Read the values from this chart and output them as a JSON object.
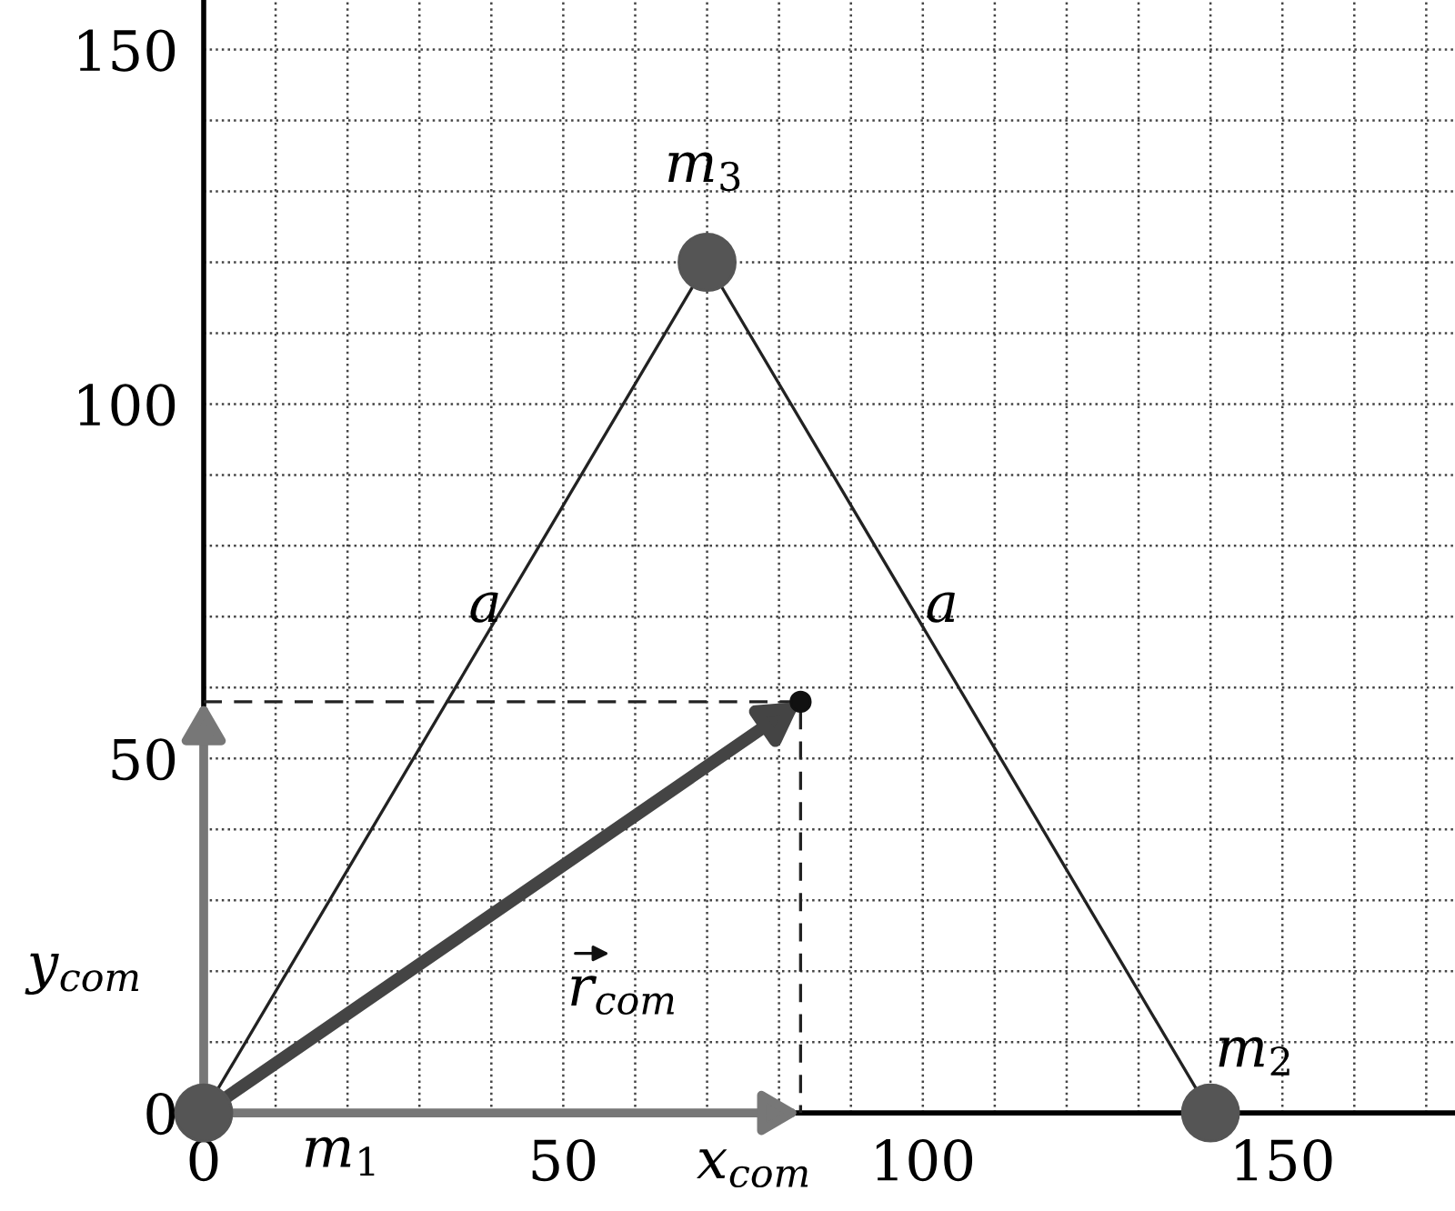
{
  "chart_data": {
    "type": "scatter",
    "x": [
      0,
      140,
      70
    ],
    "values": [
      0,
      0,
      120
    ],
    "color": "#555555",
    "series": [
      {
        "type": "line",
        "x": [
          0,
          70,
          140
        ],
        "values": [
          0,
          120,
          0
        ],
        "color": "#222222",
        "marker": "none",
        "line_style": "solid"
      },
      {
        "type": "line",
        "x": [
          0,
          83,
          83
        ],
        "values": [
          58,
          58,
          0
        ],
        "color": "#222222",
        "marker": "none",
        "line_style": "dashed"
      },
      {
        "type": "scatter",
        "x": [
          83
        ],
        "values": [
          58
        ],
        "color": "#111111",
        "marker": "circle"
      }
    ],
    "annotations": [
      "m$_{1}$",
      "m$_{2}$",
      "m$_{3}$",
      "a",
      "a",
      "r$_{com}$",
      "x$_{com}$",
      "y$_{com}$"
    ],
    "xlim": [
      0,
      174
    ],
    "ylim": [
      0,
      157
    ],
    "xticks": [
      {
        "value": 0,
        "label": "0"
      },
      {
        "value": 10,
        "label": null
      },
      {
        "value": 20,
        "label": null
      },
      {
        "value": 30,
        "label": null
      },
      {
        "value": 40,
        "label": null
      },
      {
        "value": 50,
        "label": "50"
      },
      {
        "value": 60,
        "label": null
      },
      {
        "value": 70,
        "label": null
      },
      {
        "value": 80,
        "label": null
      },
      {
        "value": 90,
        "label": null
      },
      {
        "value": 100,
        "label": "100"
      },
      {
        "value": 110,
        "label": null
      },
      {
        "value": 120,
        "label": null
      },
      {
        "value": 130,
        "label": null
      },
      {
        "value": 140,
        "label": null
      },
      {
        "value": 150,
        "label": "150"
      },
      {
        "value": 160,
        "label": null
      },
      {
        "value": 170,
        "label": null
      }
    ],
    "yticks": [
      {
        "value": 0,
        "label": "0"
      },
      {
        "value": 10,
        "label": null
      },
      {
        "value": 20,
        "label": null
      },
      {
        "value": 30,
        "label": null
      },
      {
        "value": 40,
        "label": null
      },
      {
        "value": 50,
        "label": "50"
      },
      {
        "value": 60,
        "label": null
      },
      {
        "value": 70,
        "label": null
      },
      {
        "value": 80,
        "label": null
      },
      {
        "value": 90,
        "label": null
      },
      {
        "value": 100,
        "label": "100"
      },
      {
        "value": 110,
        "label": null
      },
      {
        "value": 120,
        "label": null
      },
      {
        "value": 130,
        "label": null
      },
      {
        "value": 140,
        "label": null
      },
      {
        "value": 150,
        "label": "150"
      }
    ],
    "grid": true
  }
}
